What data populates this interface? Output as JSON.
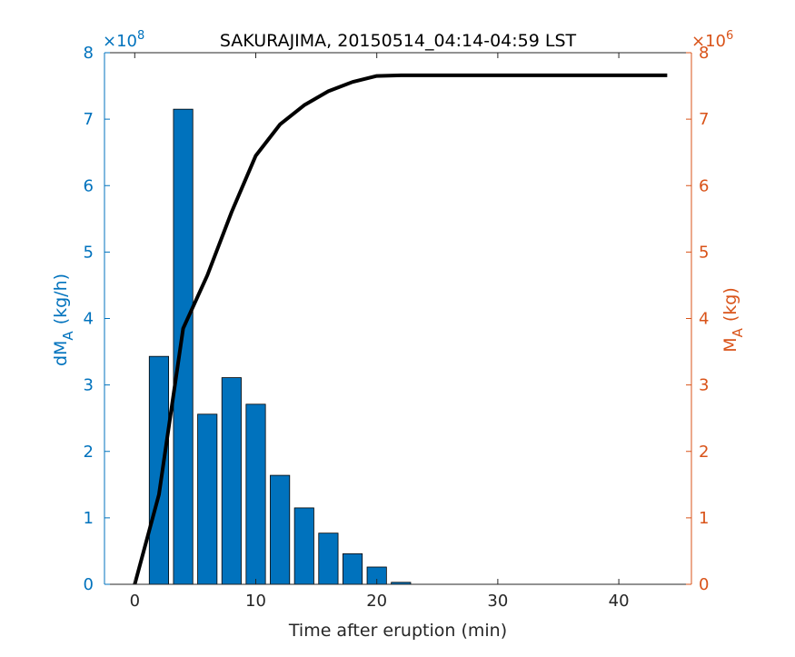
{
  "chart_data": {
    "type": "bar",
    "title": "SAKURAJIMA, 20150514_04:14-04:59 LST",
    "xlabel": "Time after eruption (min)",
    "xlim": [
      -2.5,
      46
    ],
    "xticks": [
      0,
      10,
      20,
      30,
      40
    ],
    "left_axis": {
      "label_main": "dM",
      "label_sub": "A",
      "label_unit": "(kg/h)",
      "exponent_label": "×10",
      "exponent_power": "8",
      "ylim": [
        0,
        8
      ],
      "ticks": [
        0,
        1,
        2,
        3,
        4,
        5,
        6,
        7,
        8
      ],
      "color": "#0072BD"
    },
    "right_axis": {
      "label_main": "M",
      "label_sub": "A",
      "label_unit": "(kg)",
      "exponent_label": "×10",
      "exponent_power": "6",
      "ylim": [
        0,
        8
      ],
      "ticks": [
        0,
        1,
        2,
        3,
        4,
        5,
        6,
        7,
        8
      ],
      "color": "#D95319"
    },
    "bars": {
      "axis": "left",
      "color": "#0072BD",
      "x": [
        2,
        4,
        6,
        8,
        10,
        12,
        14,
        16,
        18,
        20,
        22
      ],
      "values": [
        3.43,
        7.15,
        2.56,
        3.11,
        2.71,
        1.64,
        1.15,
        0.77,
        0.46,
        0.26,
        0.03
      ]
    },
    "series": [
      {
        "axis": "right",
        "color": "#000000",
        "x": [
          0,
          2,
          4,
          6,
          8,
          10,
          12,
          14,
          16,
          18,
          20,
          22,
          44
        ],
        "values": [
          0,
          1.35,
          3.85,
          4.65,
          5.6,
          6.45,
          6.92,
          7.21,
          7.42,
          7.56,
          7.65,
          7.66,
          7.66
        ]
      }
    ]
  }
}
